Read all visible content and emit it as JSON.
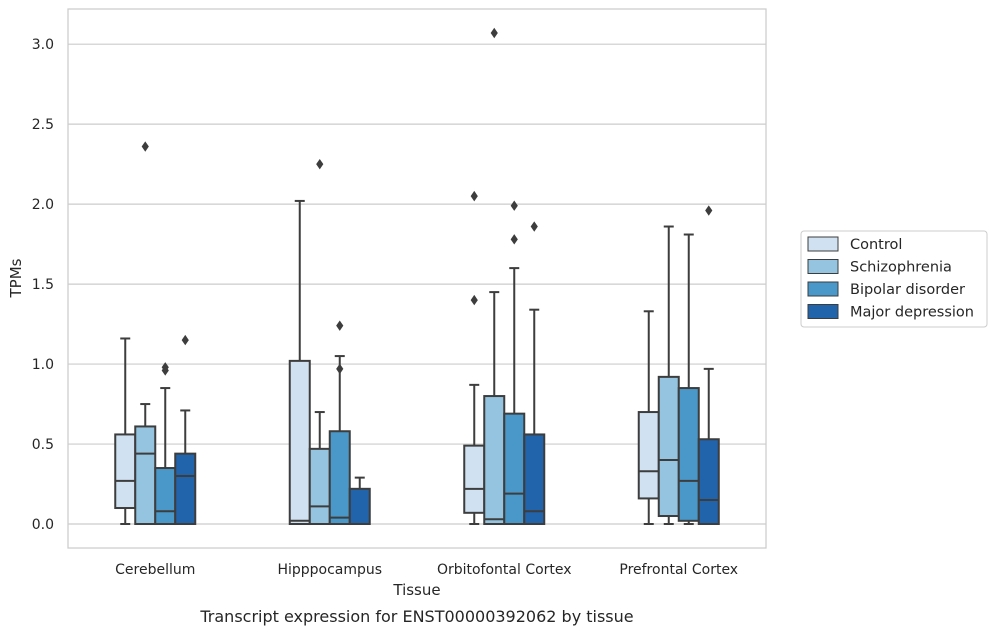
{
  "chart_data": {
    "type": "box",
    "caption": "Transcript expression for ENST00000392062 by tissue",
    "xlabel": "Tissue",
    "ylabel": "TPMs",
    "ylim": [
      -0.15,
      3.22
    ],
    "yticks": [
      0.0,
      0.5,
      1.0,
      1.5,
      2.0,
      2.5,
      3.0
    ],
    "ytick_labels": [
      "0.0",
      "0.5",
      "1.0",
      "1.5",
      "2.0",
      "2.5",
      "3.0"
    ],
    "grid": true,
    "legend_position": "right",
    "categories": [
      "Cerebellum",
      "Hipppocampus",
      "Orbitofontal Cortex",
      "Prefrontal Cortex"
    ],
    "series": [
      {
        "name": "Control",
        "color": "#d0e1f2",
        "boxes": [
          {
            "whisker_low": 0.0,
            "q1": 0.1,
            "median": 0.27,
            "q3": 0.56,
            "whisker_high": 1.16,
            "outliers": []
          },
          {
            "whisker_low": 0.0,
            "q1": 0.0,
            "median": 0.02,
            "q3": 1.02,
            "whisker_high": 2.02,
            "outliers": []
          },
          {
            "whisker_low": 0.0,
            "q1": 0.07,
            "median": 0.22,
            "q3": 0.49,
            "whisker_high": 0.87,
            "outliers": [
              1.4,
              2.05
            ]
          },
          {
            "whisker_low": 0.0,
            "q1": 0.16,
            "median": 0.33,
            "q3": 0.7,
            "whisker_high": 1.33,
            "outliers": []
          }
        ]
      },
      {
        "name": "Schizophrenia",
        "color": "#94c4df",
        "boxes": [
          {
            "whisker_low": 0.0,
            "q1": 0.0,
            "median": 0.44,
            "q3": 0.61,
            "whisker_high": 0.75,
            "outliers": [
              2.36
            ]
          },
          {
            "whisker_low": 0.0,
            "q1": 0.0,
            "median": 0.11,
            "q3": 0.47,
            "whisker_high": 0.7,
            "outliers": [
              2.25
            ]
          },
          {
            "whisker_low": 0.0,
            "q1": 0.0,
            "median": 0.03,
            "q3": 0.8,
            "whisker_high": 1.45,
            "outliers": [
              3.07
            ]
          },
          {
            "whisker_low": 0.0,
            "q1": 0.05,
            "median": 0.4,
            "q3": 0.92,
            "whisker_high": 1.86,
            "outliers": []
          }
        ]
      },
      {
        "name": "Bipolar disorder",
        "color": "#4a98c9",
        "boxes": [
          {
            "whisker_low": 0.0,
            "q1": 0.0,
            "median": 0.08,
            "q3": 0.35,
            "whisker_high": 0.85,
            "outliers": [
              0.96,
              0.98
            ]
          },
          {
            "whisker_low": 0.0,
            "q1": 0.0,
            "median": 0.04,
            "q3": 0.58,
            "whisker_high": 1.05,
            "outliers": [
              0.97,
              1.24
            ]
          },
          {
            "whisker_low": 0.0,
            "q1": 0.0,
            "median": 0.19,
            "q3": 0.69,
            "whisker_high": 1.6,
            "outliers": [
              1.78,
              1.99
            ]
          },
          {
            "whisker_low": 0.0,
            "q1": 0.02,
            "median": 0.27,
            "q3": 0.85,
            "whisker_high": 1.81,
            "outliers": []
          }
        ]
      },
      {
        "name": "Major depression",
        "color": "#2164ab",
        "boxes": [
          {
            "whisker_low": 0.0,
            "q1": 0.0,
            "median": 0.3,
            "q3": 0.44,
            "whisker_high": 0.71,
            "outliers": [
              1.15
            ]
          },
          {
            "whisker_low": 0.0,
            "q1": 0.0,
            "median": 0.0,
            "q3": 0.22,
            "whisker_high": 0.29,
            "outliers": []
          },
          {
            "whisker_low": 0.0,
            "q1": 0.0,
            "median": 0.08,
            "q3": 0.56,
            "whisker_high": 1.34,
            "outliers": [
              1.86
            ]
          },
          {
            "whisker_low": 0.0,
            "q1": 0.0,
            "median": 0.15,
            "q3": 0.53,
            "whisker_high": 0.97,
            "outliers": [
              1.96
            ]
          }
        ]
      }
    ]
  }
}
